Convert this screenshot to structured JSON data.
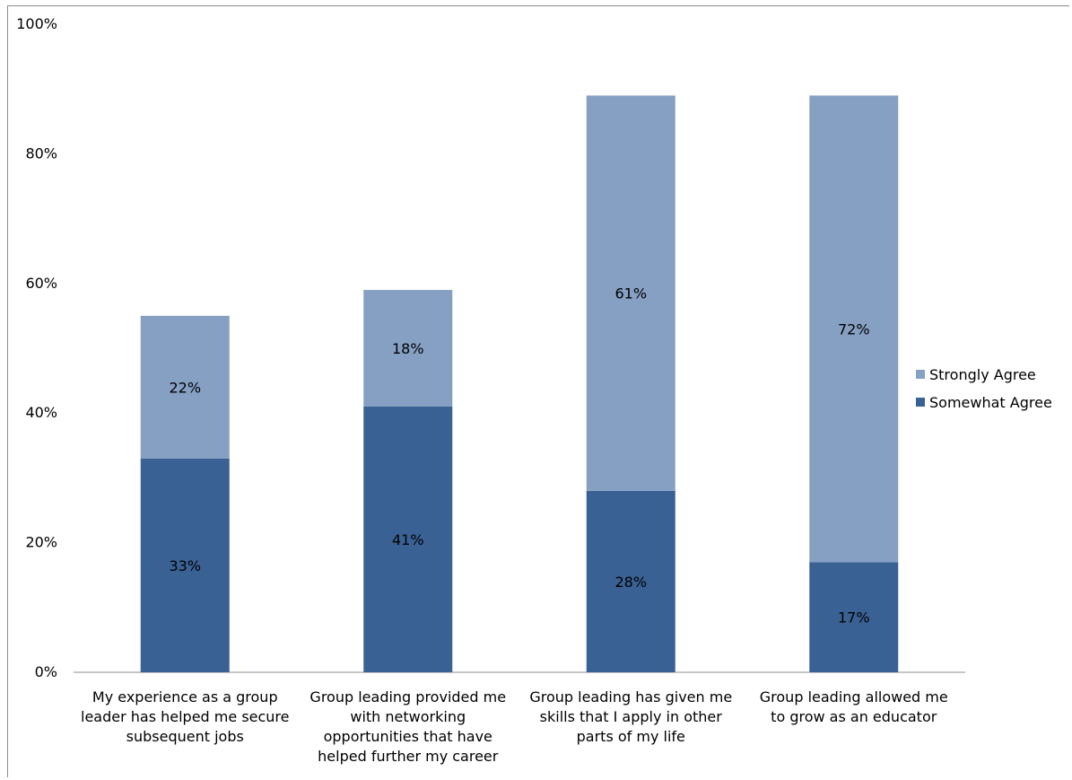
{
  "chart_data": {
    "type": "bar",
    "stacked": true,
    "ylim": [
      0,
      100
    ],
    "yticks": [
      "0%",
      "20%",
      "40%",
      "60%",
      "80%",
      "100%"
    ],
    "categories": [
      [
        "My experience as a group",
        "leader has helped me secure",
        "subsequent jobs"
      ],
      [
        "Group leading provided me",
        "with networking",
        "opportunities that have",
        "helped further my career"
      ],
      [
        "Group leading has given me",
        "skills that I apply in other",
        "parts of my life"
      ],
      [
        "Group leading allowed me",
        "to grow as an educator"
      ]
    ],
    "series": [
      {
        "name": "Somewhat Agree",
        "color": "#3a6194",
        "values": [
          33,
          41,
          28,
          17
        ],
        "labels": [
          "33%",
          "41%",
          "28%",
          "17%"
        ]
      },
      {
        "name": "Strongly Agree",
        "color": "#86a0c4",
        "values": [
          22,
          18,
          61,
          72
        ],
        "labels": [
          "22%",
          "18%",
          "61%",
          "72%"
        ]
      }
    ],
    "legend": {
      "placement": "right",
      "order": [
        "Strongly Agree",
        "Somewhat Agree"
      ]
    },
    "grid": false
  }
}
